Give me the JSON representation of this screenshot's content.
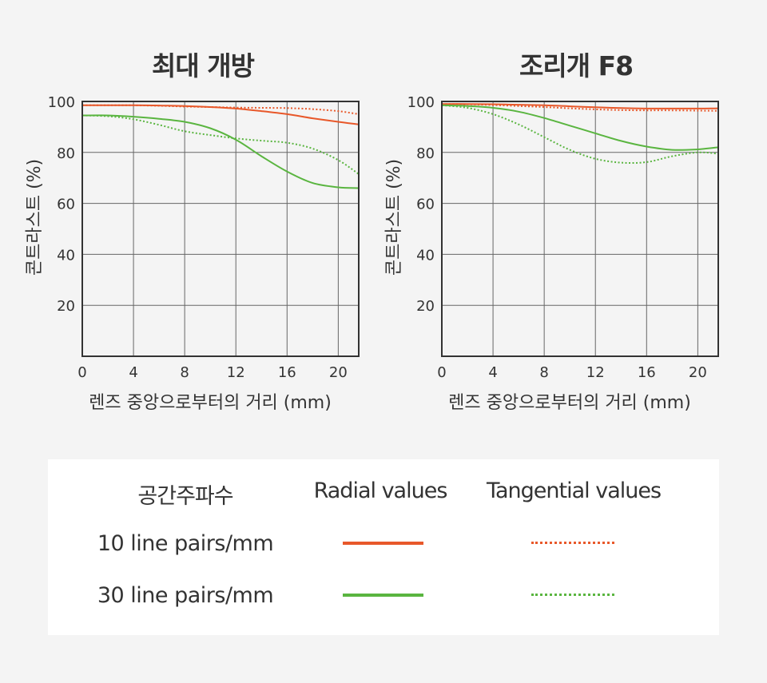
{
  "colors": {
    "lp10": "#e8582a",
    "lp30": "#5ab540",
    "grid": "#666666",
    "axis": "#333333"
  },
  "chart_data": [
    {
      "type": "line",
      "title": "최대 개방",
      "xlabel": "렌즈 중앙으로부터의 거리 (mm)",
      "ylabel": "콘트라스트 (%)",
      "xlim": [
        0,
        21.6
      ],
      "ylim": [
        0,
        100
      ],
      "xticks": [
        "0",
        "4",
        "8",
        "12",
        "16",
        "20"
      ],
      "yticks": [
        "20",
        "40",
        "60",
        "80",
        "100"
      ],
      "grid": true,
      "series": [
        {
          "key": "r10",
          "style": "solid",
          "color": "#e8582a",
          "x": [
            0,
            2,
            4,
            6,
            8,
            10,
            12,
            14,
            16,
            18,
            20,
            21.6
          ],
          "y": [
            98.5,
            98.5,
            98.5,
            98.4,
            98.2,
            97.8,
            97.2,
            96.2,
            95.0,
            93.4,
            92.0,
            91.0
          ]
        },
        {
          "key": "t10",
          "style": "dotted",
          "color": "#e8582a",
          "x": [
            0,
            2,
            4,
            6,
            8,
            10,
            12,
            14,
            16,
            18,
            20,
            21.6
          ],
          "y": [
            98.5,
            98.5,
            98.5,
            98.3,
            98.0,
            97.8,
            97.6,
            97.5,
            97.4,
            97.0,
            96.2,
            95.0
          ]
        },
        {
          "key": "r30",
          "style": "solid",
          "color": "#5ab540",
          "x": [
            0,
            2,
            4,
            6,
            8,
            10,
            12,
            14,
            16,
            18,
            20,
            21.6
          ],
          "y": [
            94.5,
            94.5,
            94.0,
            93.2,
            92.0,
            89.5,
            85.0,
            78.5,
            72.5,
            68.0,
            66.3,
            66.0
          ]
        },
        {
          "key": "t30",
          "style": "dotted",
          "color": "#5ab540",
          "x": [
            0,
            2,
            4,
            6,
            8,
            10,
            12,
            14,
            16,
            18,
            20,
            21.6
          ],
          "y": [
            94.5,
            94.2,
            93.0,
            90.8,
            88.3,
            86.8,
            85.5,
            84.6,
            83.8,
            81.5,
            77.0,
            71.5
          ]
        }
      ]
    },
    {
      "type": "line",
      "title": "조리개 F8",
      "xlabel": "렌즈 중앙으로부터의 거리 (mm)",
      "ylabel": "콘트라스트 (%)",
      "xlim": [
        0,
        21.6
      ],
      "ylim": [
        0,
        100
      ],
      "xticks": [
        "0",
        "4",
        "8",
        "12",
        "16",
        "20"
      ],
      "yticks": [
        "20",
        "40",
        "60",
        "80",
        "100"
      ],
      "grid": true,
      "series": [
        {
          "key": "r10",
          "style": "solid",
          "color": "#e8582a",
          "x": [
            0,
            2,
            4,
            6,
            8,
            10,
            12,
            14,
            16,
            18,
            20,
            21.6
          ],
          "y": [
            99.0,
            99.0,
            98.9,
            98.7,
            98.5,
            98.1,
            97.7,
            97.4,
            97.2,
            97.2,
            97.2,
            97.3
          ]
        },
        {
          "key": "t10",
          "style": "dotted",
          "color": "#e8582a",
          "x": [
            0,
            2,
            4,
            6,
            8,
            10,
            12,
            14,
            16,
            18,
            20,
            21.6
          ],
          "y": [
            99.0,
            98.9,
            98.6,
            98.2,
            97.8,
            97.3,
            96.9,
            96.6,
            96.5,
            96.5,
            96.4,
            96.3
          ]
        },
        {
          "key": "r30",
          "style": "solid",
          "color": "#5ab540",
          "x": [
            0,
            2,
            4,
            6,
            8,
            10,
            12,
            14,
            16,
            18,
            20,
            21.6
          ],
          "y": [
            98.5,
            98.2,
            97.5,
            96.0,
            93.5,
            90.5,
            87.5,
            84.5,
            82.3,
            81.0,
            81.2,
            82.0
          ]
        },
        {
          "key": "t30",
          "style": "dotted",
          "color": "#5ab540",
          "x": [
            0,
            2,
            4,
            6,
            8,
            10,
            12,
            14,
            16,
            18,
            20,
            21.6
          ],
          "y": [
            98.5,
            97.5,
            95.0,
            91.0,
            86.0,
            81.0,
            77.5,
            76.0,
            76.2,
            78.5,
            80.0,
            79.5
          ]
        }
      ]
    }
  ],
  "legend": {
    "header_freq": "공간주파수",
    "header_radial": "Radial values",
    "header_tangential": "Tangential values",
    "row1": "10 line pairs/mm",
    "row2": "30 line pairs/mm"
  }
}
